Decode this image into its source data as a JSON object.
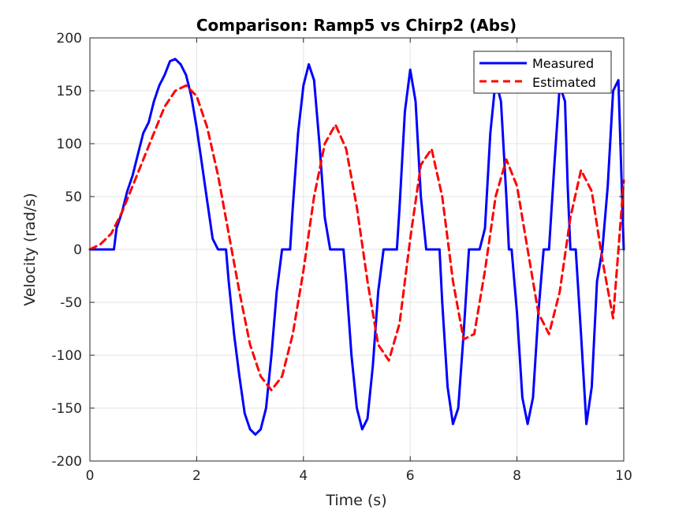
{
  "chart_data": {
    "type": "line",
    "title": "Comparison: Ramp5 vs Chirp2 (Abs)",
    "xlabel": "Time (s)",
    "ylabel": "Velocity (rad/s)",
    "xlim": [
      0,
      10
    ],
    "ylim": [
      -200,
      200
    ],
    "xticks": [
      0,
      2,
      4,
      6,
      8,
      10
    ],
    "yticks": [
      -200,
      -150,
      -100,
      -50,
      0,
      50,
      100,
      150,
      200
    ],
    "grid": true,
    "legend_position": "top-right",
    "series": [
      {
        "name": "Measured",
        "color": "#0000ff",
        "style": "solid",
        "x": [
          0,
          0.45,
          0.5,
          0.6,
          0.7,
          0.8,
          0.9,
          1.0,
          1.1,
          1.2,
          1.3,
          1.4,
          1.5,
          1.6,
          1.7,
          1.8,
          1.9,
          2.0,
          2.1,
          2.2,
          2.3,
          2.4,
          2.5,
          2.55,
          2.6,
          2.7,
          2.8,
          2.9,
          3.0,
          3.1,
          3.2,
          3.3,
          3.4,
          3.5,
          3.6,
          3.7,
          3.75,
          3.8,
          3.9,
          4.0,
          4.1,
          4.2,
          4.3,
          4.4,
          4.5,
          4.6,
          4.7,
          4.75,
          4.8,
          4.9,
          5.0,
          5.1,
          5.2,
          5.3,
          5.4,
          5.5,
          5.6,
          5.7,
          5.75,
          5.8,
          5.9,
          6.0,
          6.1,
          6.2,
          6.3,
          6.4,
          6.5,
          6.55,
          6.6,
          6.7,
          6.8,
          6.9,
          7.0,
          7.1,
          7.2,
          7.3,
          7.4,
          7.5,
          7.6,
          7.7,
          7.8,
          7.85,
          7.9,
          8.0,
          8.1,
          8.2,
          8.3,
          8.4,
          8.5,
          8.6,
          8.7,
          8.8,
          8.9,
          8.95,
          9.0,
          9.1,
          9.2,
          9.3,
          9.4,
          9.5,
          9.6,
          9.7,
          9.8,
          9.9,
          10.0
        ],
        "y": [
          0,
          0,
          20,
          35,
          55,
          70,
          90,
          110,
          120,
          140,
          155,
          165,
          178,
          180,
          175,
          165,
          145,
          115,
          80,
          45,
          10,
          0,
          0,
          0,
          -30,
          -80,
          -120,
          -155,
          -170,
          -175,
          -170,
          -150,
          -100,
          -40,
          0,
          0,
          0,
          40,
          110,
          155,
          175,
          160,
          100,
          30,
          0,
          0,
          0,
          0,
          -30,
          -100,
          -150,
          -170,
          -160,
          -110,
          -40,
          0,
          0,
          0,
          0,
          40,
          130,
          170,
          140,
          50,
          0,
          0,
          0,
          0,
          -50,
          -130,
          -165,
          -150,
          -80,
          0,
          0,
          0,
          20,
          110,
          160,
          140,
          50,
          0,
          0,
          -60,
          -140,
          -165,
          -140,
          -60,
          0,
          0,
          80,
          155,
          140,
          60,
          0,
          0,
          -80,
          -165,
          -130,
          -30,
          0,
          60,
          150,
          160,
          0
        ]
      },
      {
        "name": "Estimated",
        "color": "#ff0000",
        "style": "dashed",
        "x": [
          0,
          0.2,
          0.4,
          0.6,
          0.8,
          1.0,
          1.2,
          1.4,
          1.6,
          1.8,
          2.0,
          2.2,
          2.4,
          2.6,
          2.8,
          3.0,
          3.2,
          3.4,
          3.6,
          3.8,
          4.0,
          4.2,
          4.4,
          4.6,
          4.8,
          5.0,
          5.2,
          5.4,
          5.6,
          5.8,
          6.0,
          6.2,
          6.4,
          6.6,
          6.8,
          7.0,
          7.2,
          7.4,
          7.6,
          7.8,
          8.0,
          8.2,
          8.4,
          8.6,
          8.8,
          9.0,
          9.2,
          9.4,
          9.6,
          9.8,
          10.0
        ],
        "y": [
          0,
          5,
          15,
          35,
          60,
          85,
          110,
          135,
          150,
          155,
          145,
          115,
          70,
          15,
          -40,
          -90,
          -120,
          -133,
          -120,
          -80,
          -20,
          50,
          100,
          118,
          95,
          40,
          -30,
          -90,
          -105,
          -70,
          10,
          80,
          95,
          50,
          -30,
          -85,
          -80,
          -20,
          50,
          85,
          60,
          0,
          -60,
          -80,
          -40,
          30,
          75,
          55,
          -10,
          -65,
          65
        ]
      }
    ]
  }
}
